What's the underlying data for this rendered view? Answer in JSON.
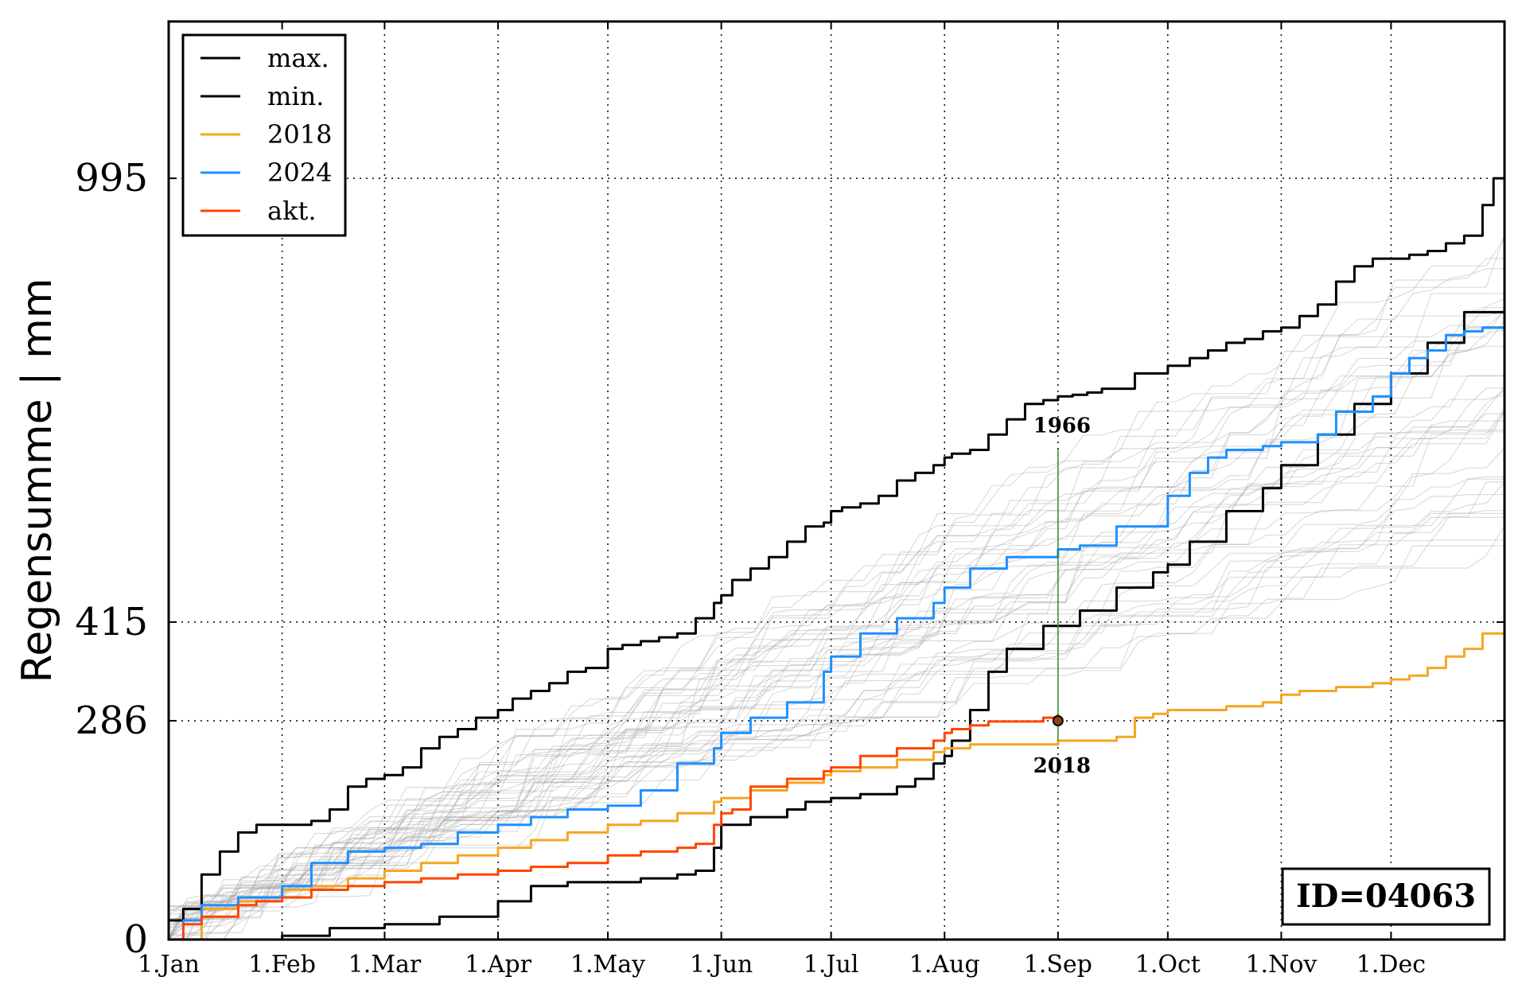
{
  "chart_data": {
    "type": "line",
    "ylabel": "Regensumme | mm",
    "xlabel": "",
    "x_tick_labels": [
      "1.Jan",
      "1.Feb",
      "1.Mar",
      "1.Apr",
      "1.May",
      "1.Jun",
      "1.Jul",
      "1.Aug",
      "1.Sep",
      "1.Oct",
      "1.Nov",
      "1.Dec"
    ],
    "x_tick_days": [
      1,
      32,
      60,
      91,
      121,
      152,
      182,
      213,
      244,
      274,
      305,
      335
    ],
    "xlim": [
      1,
      366
    ],
    "y_ticks": [
      0,
      286,
      415,
      995
    ],
    "y_tick_labels": [
      "0",
      "286",
      "415",
      "995"
    ],
    "ylim": [
      0,
      1200
    ],
    "grid": true,
    "legend_position": "top-left",
    "series": [
      {
        "name": "max.",
        "color": "#000000",
        "x": [
          1,
          5,
          10,
          15,
          20,
          25,
          32,
          40,
          45,
          50,
          55,
          60,
          65,
          70,
          75,
          80,
          85,
          91,
          95,
          100,
          105,
          110,
          115,
          121,
          125,
          130,
          135,
          140,
          145,
          150,
          152,
          155,
          160,
          165,
          170,
          175,
          180,
          182,
          185,
          190,
          195,
          200,
          205,
          210,
          213,
          215,
          220,
          225,
          230,
          235,
          240,
          244,
          248,
          252,
          256,
          260,
          265,
          270,
          274,
          280,
          285,
          290,
          295,
          300,
          305,
          310,
          315,
          320,
          325,
          330,
          335,
          340,
          345,
          350,
          355,
          360,
          363,
          366
        ],
        "y": [
          25,
          40,
          85,
          115,
          140,
          150,
          150,
          155,
          170,
          200,
          210,
          215,
          225,
          250,
          265,
          275,
          290,
          300,
          315,
          325,
          335,
          350,
          355,
          380,
          385,
          390,
          395,
          400,
          420,
          440,
          450,
          470,
          485,
          500,
          520,
          540,
          545,
          560,
          565,
          570,
          580,
          600,
          610,
          620,
          630,
          635,
          640,
          660,
          680,
          700,
          705,
          710,
          712,
          715,
          720,
          720,
          740,
          740,
          750,
          760,
          770,
          780,
          785,
          795,
          800,
          815,
          830,
          860,
          880,
          890,
          890,
          895,
          900,
          910,
          920,
          960,
          995,
          995
        ]
      },
      {
        "name": "min.",
        "color": "#000000",
        "x": [
          1,
          20,
          32,
          45,
          60,
          75,
          91,
          100,
          110,
          121,
          130,
          140,
          145,
          150,
          152,
          160,
          170,
          175,
          182,
          190,
          200,
          205,
          210,
          213,
          215,
          220,
          225,
          230,
          240,
          250,
          260,
          270,
          274,
          280,
          290,
          300,
          305,
          315,
          325,
          335,
          345,
          355,
          366
        ],
        "y": [
          0,
          0,
          5,
          15,
          20,
          30,
          50,
          70,
          75,
          75,
          80,
          85,
          90,
          120,
          150,
          160,
          170,
          180,
          185,
          190,
          200,
          210,
          230,
          240,
          260,
          300,
          350,
          380,
          410,
          430,
          460,
          480,
          490,
          520,
          560,
          590,
          620,
          660,
          700,
          740,
          780,
          820,
          860
        ]
      },
      {
        "name": "2018",
        "color": "#f5a623",
        "x": [
          1,
          10,
          20,
          32,
          40,
          50,
          60,
          70,
          80,
          91,
          100,
          110,
          121,
          130,
          140,
          150,
          152,
          160,
          170,
          180,
          182,
          190,
          200,
          210,
          213,
          220,
          230,
          244,
          250,
          260,
          265,
          270,
          274,
          280,
          290,
          300,
          305,
          310,
          320,
          330,
          335,
          340,
          345,
          350,
          355,
          360,
          366
        ],
        "y": [
          0,
          40,
          50,
          65,
          70,
          80,
          90,
          100,
          110,
          120,
          130,
          140,
          150,
          155,
          165,
          180,
          185,
          195,
          205,
          215,
          220,
          225,
          235,
          245,
          250,
          255,
          255,
          260,
          260,
          265,
          290,
          295,
          300,
          300,
          305,
          310,
          320,
          325,
          330,
          335,
          340,
          345,
          355,
          370,
          380,
          400,
          410
        ]
      },
      {
        "name": "2024",
        "color": "#1e90ff",
        "x": [
          1,
          5,
          10,
          20,
          32,
          40,
          50,
          60,
          70,
          80,
          91,
          100,
          110,
          121,
          130,
          140,
          150,
          152,
          160,
          170,
          180,
          182,
          190,
          200,
          210,
          213,
          220,
          230,
          244,
          250,
          260,
          274,
          280,
          285,
          290,
          300,
          305,
          315,
          320,
          330,
          335,
          340,
          345,
          350,
          355,
          360,
          366
        ],
        "y": [
          0,
          25,
          45,
          55,
          70,
          100,
          115,
          120,
          125,
          140,
          150,
          160,
          170,
          175,
          195,
          230,
          250,
          270,
          290,
          310,
          350,
          370,
          400,
          420,
          440,
          460,
          485,
          500,
          510,
          515,
          540,
          580,
          610,
          630,
          640,
          645,
          650,
          660,
          690,
          710,
          740,
          760,
          770,
          790,
          795,
          800,
          810
        ]
      },
      {
        "name": "akt.",
        "color": "#ff4500",
        "x": [
          1,
          5,
          10,
          20,
          25,
          32,
          40,
          50,
          60,
          70,
          80,
          91,
          100,
          110,
          121,
          130,
          140,
          145,
          150,
          152,
          155,
          160,
          170,
          180,
          182,
          190,
          200,
          210,
          213,
          215,
          220,
          225,
          230,
          240,
          244
        ],
        "y": [
          0,
          20,
          30,
          45,
          50,
          55,
          65,
          70,
          75,
          80,
          85,
          90,
          95,
          100,
          110,
          115,
          120,
          125,
          150,
          165,
          170,
          200,
          210,
          220,
          225,
          240,
          250,
          260,
          270,
          275,
          280,
          285,
          285,
          290,
          295
        ]
      }
    ],
    "annotations": [
      {
        "text": "1966",
        "x": 244,
        "y": 640
      },
      {
        "text": "2018",
        "x": 244,
        "y": 260
      }
    ],
    "marker": {
      "x": 244,
      "y": 286
    },
    "id_box": "ID=04063"
  }
}
